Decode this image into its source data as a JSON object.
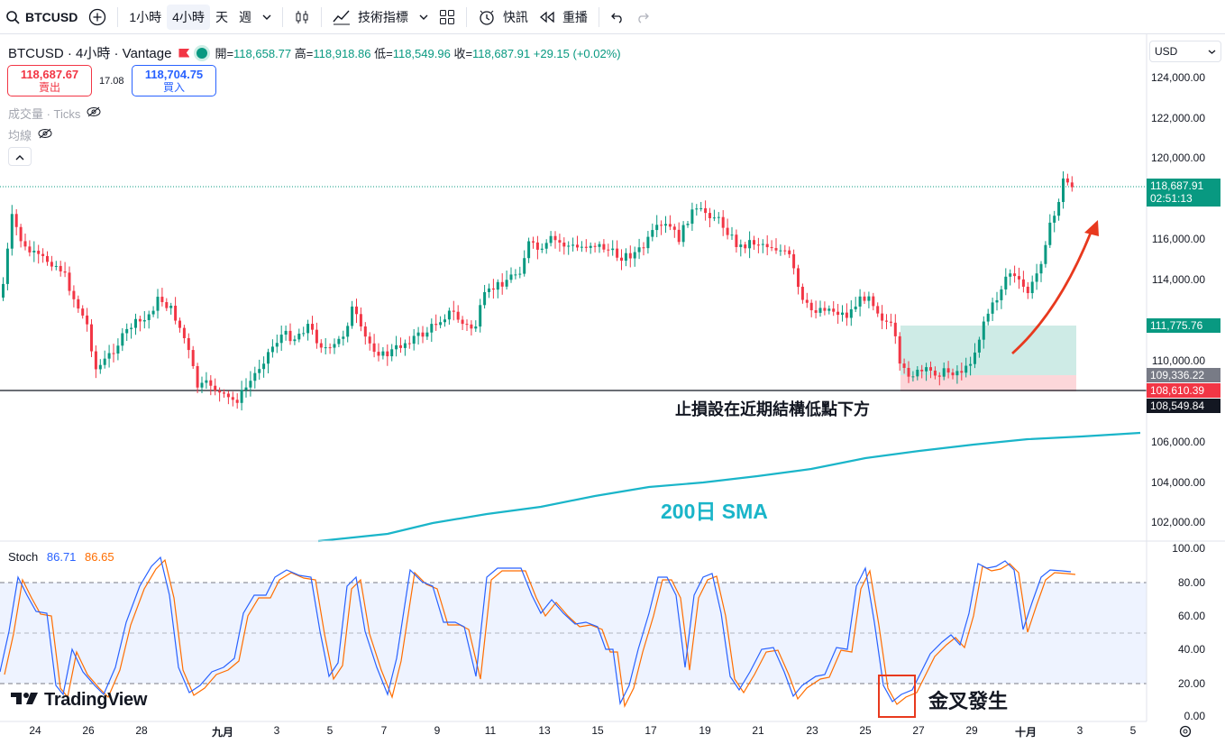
{
  "toolbar": {
    "symbol": "BTCUSD",
    "intervals": [
      "1小時",
      "4小時",
      "天",
      "週"
    ],
    "active_interval": "4小時",
    "indicators_label": "技術指標",
    "alert_label": "快訊",
    "replay_label": "重播"
  },
  "legend": {
    "title": "BTCUSD · 4小時 · Vantage",
    "open_label": "開=",
    "open": "118,658.77",
    "high_label": "高=",
    "high": "118,918.86",
    "low_label": "低=",
    "low": "118,549.96",
    "close_label": "收=",
    "close": "118,687.91",
    "change": "+29.15 (+0.02%)"
  },
  "trade": {
    "sell_price": "118,687.67",
    "sell_label": "賣出",
    "spread": "17.08",
    "buy_price": "118,704.75",
    "buy_label": "買入"
  },
  "sub_indicators": {
    "volume": "成交量 · Ticks",
    "ma": "均線"
  },
  "currency": "USD",
  "price_axis": [
    "124,000.00",
    "122,000.00",
    "120,000.00",
    "116,000.00",
    "114,000.00",
    "110,000.00",
    "106,000.00",
    "104,000.00",
    "102,000.00"
  ],
  "price_tags": {
    "last_price": "118,687.91",
    "countdown": "02:51:13",
    "target": "111,775.76",
    "entry": "109,336.22",
    "stop": "108,610.39",
    "low": "108,549.84"
  },
  "stoch": {
    "label": "Stoch",
    "k": "86.71",
    "d": "86.65",
    "axis": [
      "100.00",
      "80.00",
      "60.00",
      "40.00",
      "20.00",
      "0.00"
    ]
  },
  "x_axis": [
    "24",
    "26",
    "28",
    "九月",
    "3",
    "5",
    "7",
    "9",
    "11",
    "13",
    "15",
    "17",
    "19",
    "21",
    "23",
    "25",
    "27",
    "29",
    "十月",
    "3",
    "5"
  ],
  "annotations": {
    "stop_note": "止損設在近期結構低點下方",
    "sma_label": "200日 SMA",
    "golden_cross": "金叉發生"
  },
  "brand": "TradingView",
  "colors": {
    "up": "#089981",
    "down": "#f23645",
    "sma": "#1ab5c9",
    "stoch_k": "#2962ff",
    "stoch_d": "#ff6d00",
    "arrow": "#e8391e"
  }
}
